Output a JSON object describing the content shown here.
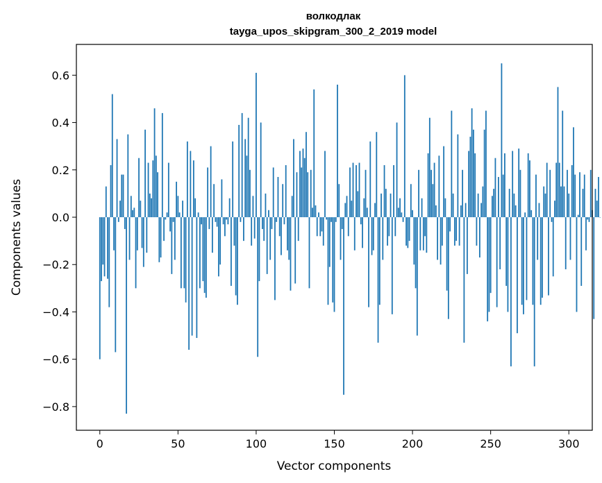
{
  "chart_data": {
    "type": "bar",
    "title": "волкодлак",
    "subtitle": "tayga_upos_skipgram_300_2_2019 model",
    "xlabel": "Vector components",
    "ylabel": "Components values",
    "xlim": [
      -15,
      315
    ],
    "ylim": [
      -0.9,
      0.73
    ],
    "xticks": [
      0,
      50,
      100,
      150,
      200,
      250,
      300
    ],
    "xtick_labels": [
      "0",
      "50",
      "100",
      "150",
      "200",
      "250",
      "300"
    ],
    "yticks": [
      -0.8,
      -0.6,
      -0.4,
      -0.2,
      0.0,
      0.2,
      0.4,
      0.6
    ],
    "ytick_labels": [
      "−0.8",
      "−0.6",
      "−0.4",
      "−0.2",
      "0.0",
      "0.2",
      "0.4",
      "0.6"
    ],
    "grid": false,
    "bar_color": "#1f77b4",
    "values": [
      -0.6,
      -0.27,
      -0.2,
      -0.25,
      0.13,
      -0.26,
      -0.38,
      0.22,
      0.52,
      -0.14,
      -0.57,
      0.33,
      -0.02,
      0.07,
      0.18,
      0.18,
      -0.05,
      -0.83,
      0.35,
      -0.18,
      0.09,
      0.03,
      0.04,
      -0.3,
      -0.14,
      0.25,
      0.07,
      -0.13,
      -0.21,
      0.37,
      -0.15,
      0.23,
      0.1,
      0.08,
      0.24,
      0.46,
      0.26,
      0.19,
      -0.19,
      -0.17,
      0.44,
      -0.1,
      -0.01,
      0.02,
      0.23,
      -0.06,
      -0.24,
      -0.02,
      -0.18,
      0.15,
      0.09,
      0.02,
      -0.3,
      0.07,
      -0.3,
      -0.36,
      0.32,
      -0.56,
      0.28,
      -0.5,
      0.24,
      0.08,
      -0.51,
      0.02,
      -0.3,
      -0.03,
      -0.27,
      -0.32,
      -0.34,
      0.21,
      -0.05,
      0.3,
      -0.15,
      0.14,
      -0.02,
      -0.04,
      -0.25,
      -0.2,
      0.16,
      -0.03,
      -0.08,
      -0.01,
      -0.03,
      0.08,
      -0.29,
      0.32,
      -0.12,
      -0.33,
      -0.37,
      0.39,
      -0.02,
      0.44,
      -0.1,
      0.33,
      0.26,
      0.42,
      0.2,
      -0.12,
      0.09,
      -0.09,
      0.61,
      -0.59,
      -0.27,
      0.4,
      -0.05,
      -0.1,
      0.1,
      -0.24,
      0.03,
      -0.18,
      -0.05,
      0.21,
      -0.35,
      -0.02,
      0.17,
      -0.08,
      -0.16,
      0.14,
      -0.03,
      0.22,
      -0.14,
      -0.18,
      -0.31,
      0.09,
      0.33,
      -0.28,
      0.19,
      -0.1,
      0.28,
      0.21,
      0.29,
      0.25,
      0.36,
      0.19,
      -0.3,
      0.2,
      0.04,
      0.54,
      0.05,
      -0.08,
      0.02,
      -0.08,
      -0.06,
      -0.12,
      0.28,
      -0.01,
      -0.37,
      -0.21,
      -0.02,
      -0.36,
      -0.4,
      -0.02,
      0.56,
      0.14,
      -0.18,
      -0.05,
      -0.75,
      0.06,
      0.09,
      -0.08,
      0.21,
      0.07,
      0.23,
      -0.14,
      0.22,
      0.11,
      0.23,
      -0.03,
      -0.13,
      0.08,
      0.2,
      0.04,
      -0.38,
      0.32,
      -0.16,
      -0.14,
      0.06,
      0.36,
      -0.53,
      -0.37,
      0.1,
      -0.18,
      0.22,
      0.12,
      -0.12,
      -0.08,
      0.1,
      -0.41,
      0.22,
      -0.08,
      0.4,
      0.04,
      0.08,
      0.02,
      -0.02,
      0.6,
      -0.12,
      -0.13,
      -0.1,
      0.14,
      0.03,
      -0.2,
      -0.3,
      -0.5,
      0.2,
      -0.14,
      0.08,
      -0.14,
      -0.08,
      -0.15,
      0.27,
      0.42,
      0.2,
      0.14,
      0.23,
      0.05,
      -0.18,
      0.26,
      -0.2,
      -0.12,
      0.3,
      0.08,
      -0.31,
      -0.43,
      -0.06,
      0.45,
      0.1,
      -0.12,
      -0.1,
      0.35,
      -0.12,
      0.05,
      0.2,
      -0.53,
      0.06,
      -0.24,
      0.28,
      0.34,
      0.46,
      0.37,
      0.27,
      -0.12,
      0.1,
      -0.17,
      0.06,
      0.13,
      0.37,
      0.45,
      -0.44,
      -0.4,
      -0.32,
      0.09,
      0.12,
      0.25,
      -0.38,
      0.17,
      -0.22,
      0.65,
      0.18,
      0.27,
      -0.29,
      -0.4,
      0.12,
      -0.63,
      0.28,
      0.1,
      0.05,
      -0.49,
      0.29,
      0.2,
      -0.37,
      -0.41,
      0.02,
      -0.35,
      0.27,
      0.24,
      0.03,
      -0.37,
      -0.63,
      0.18,
      -0.18,
      0.06,
      -0.37,
      -0.34,
      0.13,
      0.1,
      0.23,
      -0.33,
      0.2,
      -0.02,
      -0.25,
      0.07,
      0.23,
      0.55,
      0.23,
      0.13,
      0.45,
      0.13,
      -0.22,
      0.2,
      0.1,
      -0.18,
      0.22,
      0.38,
      0.18,
      -0.4,
      0.01,
      0.19,
      -0.29,
      0.12,
      0.18,
      -0.14,
      -0.01,
      -0.02,
      0.2,
      0.03,
      -0.43,
      0.12,
      0.07,
      0.17,
      0.0
    ]
  }
}
